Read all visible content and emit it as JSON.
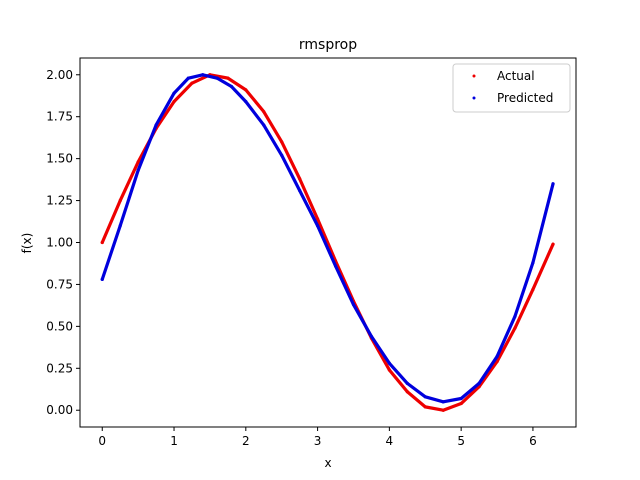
{
  "chart_data": {
    "type": "scatter",
    "title": "rmsprop",
    "xlabel": "x",
    "ylabel": "f(x)",
    "xlim": [
      -0.31,
      6.6
    ],
    "ylim": [
      -0.1,
      2.1
    ],
    "x_ticks": [
      "0",
      "1",
      "2",
      "3",
      "4",
      "5",
      "6"
    ],
    "y_ticks": [
      "0.00",
      "0.25",
      "0.50",
      "0.75",
      "1.00",
      "1.25",
      "1.50",
      "1.75",
      "2.00"
    ],
    "x_tick_values": [
      0,
      1,
      2,
      3,
      4,
      5,
      6
    ],
    "y_tick_values": [
      0,
      0.25,
      0.5,
      0.75,
      1.0,
      1.25,
      1.5,
      1.75,
      2.0
    ],
    "legend_position": "top-right",
    "series": [
      {
        "name": "Actual",
        "color": "#ee0000",
        "points": [
          [
            0.0,
            1.0
          ],
          [
            0.25,
            1.25
          ],
          [
            0.5,
            1.48
          ],
          [
            0.75,
            1.68
          ],
          [
            1.0,
            1.84
          ],
          [
            1.25,
            1.95
          ],
          [
            1.5,
            2.0
          ],
          [
            1.75,
            1.98
          ],
          [
            2.0,
            1.91
          ],
          [
            2.25,
            1.78
          ],
          [
            2.5,
            1.6
          ],
          [
            2.75,
            1.38
          ],
          [
            3.0,
            1.14
          ],
          [
            3.25,
            0.89
          ],
          [
            3.5,
            0.65
          ],
          [
            3.75,
            0.43
          ],
          [
            4.0,
            0.24
          ],
          [
            4.25,
            0.11
          ],
          [
            4.5,
            0.02
          ],
          [
            4.75,
            0.0
          ],
          [
            5.0,
            0.04
          ],
          [
            5.25,
            0.14
          ],
          [
            5.5,
            0.29
          ],
          [
            5.75,
            0.49
          ],
          [
            6.0,
            0.72
          ],
          [
            6.28,
            0.99
          ]
        ]
      },
      {
        "name": "Predicted",
        "color": "#0000dd",
        "points": [
          [
            0.0,
            0.78
          ],
          [
            0.25,
            1.1
          ],
          [
            0.5,
            1.43
          ],
          [
            0.75,
            1.7
          ],
          [
            1.0,
            1.89
          ],
          [
            1.2,
            1.98
          ],
          [
            1.4,
            2.0
          ],
          [
            1.6,
            1.98
          ],
          [
            1.8,
            1.93
          ],
          [
            2.0,
            1.84
          ],
          [
            2.25,
            1.7
          ],
          [
            2.5,
            1.52
          ],
          [
            2.75,
            1.31
          ],
          [
            3.0,
            1.1
          ],
          [
            3.25,
            0.86
          ],
          [
            3.5,
            0.63
          ],
          [
            3.75,
            0.44
          ],
          [
            4.0,
            0.28
          ],
          [
            4.25,
            0.16
          ],
          [
            4.5,
            0.08
          ],
          [
            4.75,
            0.05
          ],
          [
            5.0,
            0.07
          ],
          [
            5.25,
            0.16
          ],
          [
            5.5,
            0.32
          ],
          [
            5.75,
            0.56
          ],
          [
            6.0,
            0.88
          ],
          [
            6.28,
            1.35
          ]
        ]
      }
    ]
  }
}
